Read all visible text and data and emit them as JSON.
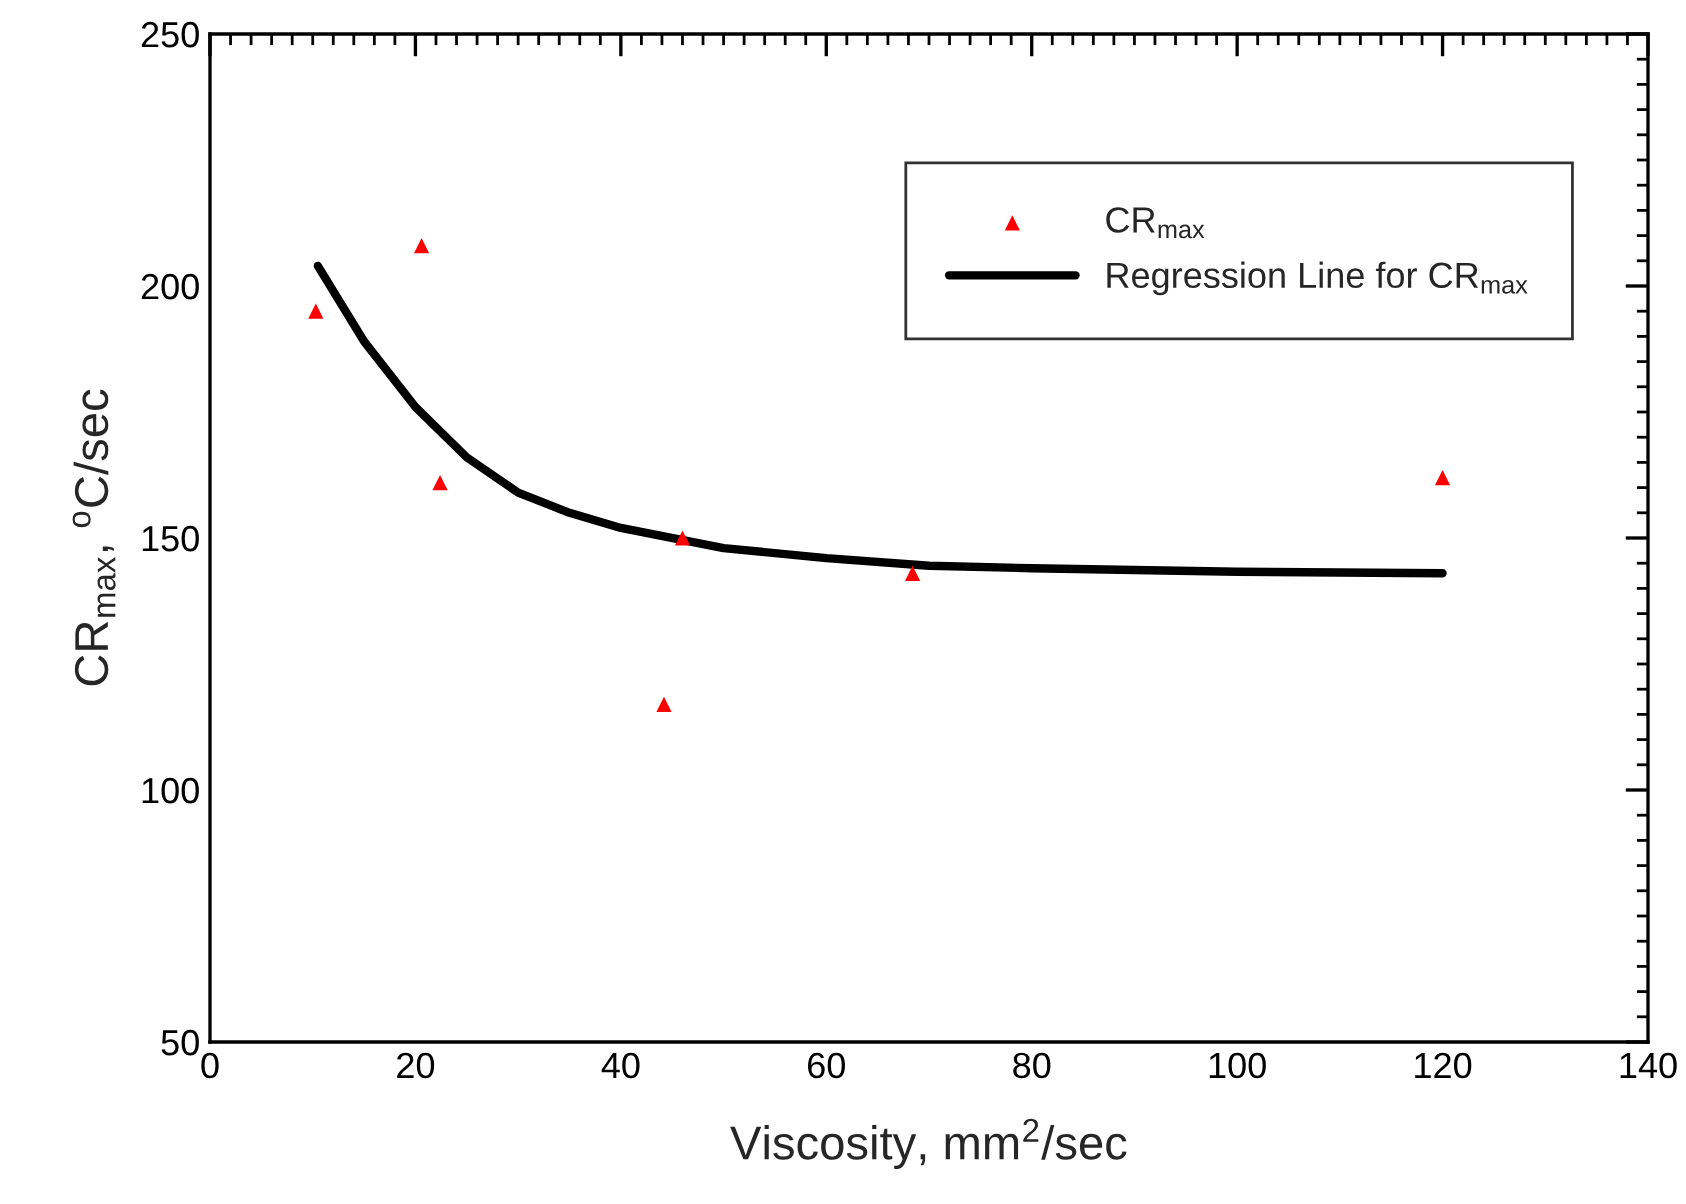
{
  "chart_data": {
    "type": "scatter",
    "xlabel": "Viscosity, mm$^{2}$/sec",
    "ylabel": "CR$_{max}$, $^{o}$C/sec",
    "xlim": [
      0,
      140
    ],
    "xticks": [
      0,
      20,
      40,
      60,
      80,
      100,
      120,
      140
    ],
    "ylim": [
      50,
      250
    ],
    "yticks": [
      50,
      100,
      150,
      200,
      250
    ],
    "grid": false,
    "legend": "top right",
    "series": [
      {
        "name": "CR$_{max}$",
        "marker": "triangle",
        "color": "#ff0000",
        "x": [
          10.3,
          20.6,
          22.4,
          44.2,
          46.0,
          68.4,
          120.0
        ],
        "values": [
          195,
          208,
          161,
          117,
          150,
          143,
          162
        ]
      },
      {
        "name": "Regression Line for CR$_{max}$",
        "type": "line",
        "line_style": "solid",
        "color": "#000000",
        "x": [
          10.5,
          15,
          20,
          25,
          30,
          35,
          40,
          50,
          60,
          70,
          80,
          100,
          120
        ],
        "values": [
          204,
          189,
          176,
          166,
          159,
          155,
          152,
          148,
          146,
          144.5,
          144,
          143.3,
          143
        ]
      }
    ]
  }
}
